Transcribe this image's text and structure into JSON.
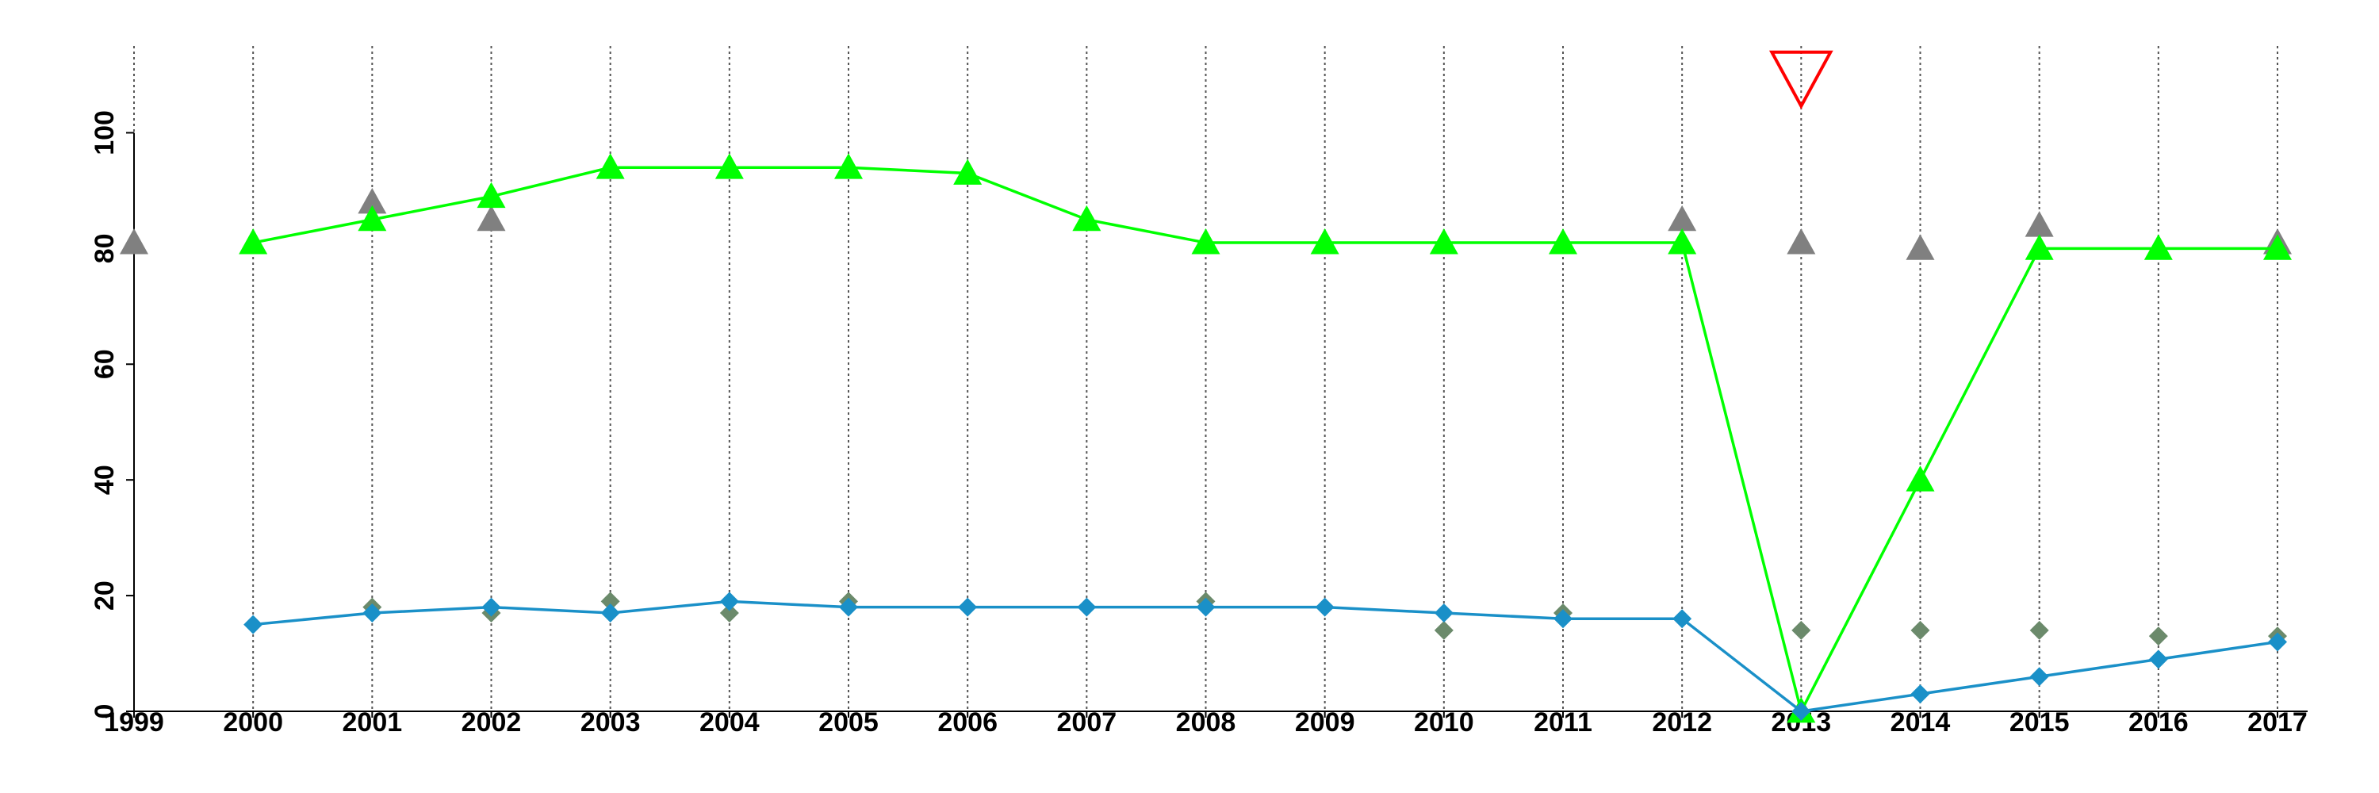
{
  "chart_data": {
    "type": "line",
    "x": [
      1999,
      2000,
      2001,
      2002,
      2003,
      2004,
      2005,
      2006,
      2007,
      2008,
      2009,
      2010,
      2011,
      2012,
      2013,
      2014,
      2015,
      2016,
      2017
    ],
    "xlim": [
      1999,
      2017
    ],
    "xticks": [
      1999,
      2000,
      2001,
      2002,
      2003,
      2004,
      2005,
      2006,
      2007,
      2008,
      2009,
      2010,
      2011,
      2012,
      2013,
      2014,
      2015,
      2016,
      2017
    ],
    "ylim": [
      0,
      115
    ],
    "yticks": [
      0,
      20,
      40,
      60,
      80,
      100
    ],
    "grid": "x",
    "series": [
      {
        "color": "#00ff00",
        "marker": "triangle",
        "line": true,
        "values": [
          null,
          81,
          85,
          89,
          94,
          94,
          94,
          93,
          85,
          81,
          81,
          81,
          81,
          81,
          0,
          40,
          80,
          80,
          80
        ]
      },
      {
        "color": "#808080",
        "marker": "triangle",
        "line": false,
        "values": [
          81,
          null,
          88,
          85,
          null,
          null,
          null,
          null,
          null,
          null,
          null,
          null,
          null,
          85,
          81,
          80,
          84,
          null,
          81
        ]
      },
      {
        "color": "#1a90c8",
        "marker": "diamond",
        "line": true,
        "values": [
          null,
          15,
          17,
          18,
          17,
          19,
          18,
          18,
          18,
          18,
          18,
          17,
          16,
          16,
          0,
          3,
          6,
          9,
          12
        ]
      },
      {
        "color": "#6b8a6b",
        "marker": "diamond",
        "line": false,
        "values": [
          null,
          null,
          18,
          17,
          19,
          17,
          19,
          null,
          null,
          19,
          null,
          14,
          17,
          null,
          14,
          14,
          14,
          13,
          13
        ]
      },
      {
        "color": "#ff0000",
        "marker": "triangle-down-hollow",
        "line": false,
        "values": [
          null,
          null,
          null,
          null,
          null,
          null,
          null,
          null,
          null,
          null,
          null,
          null,
          null,
          null,
          109,
          null,
          null,
          null,
          null
        ]
      }
    ]
  }
}
